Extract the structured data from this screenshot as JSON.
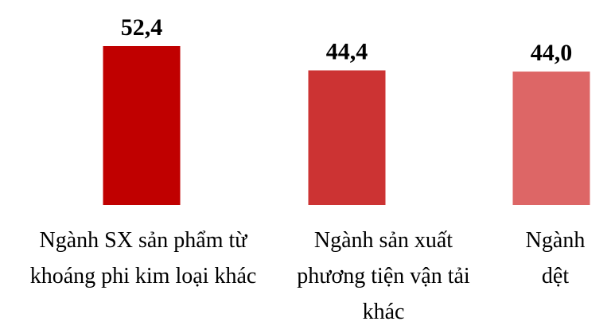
{
  "chart_data": {
    "type": "bar",
    "categories": [
      "Ngành SX sản phẩm từ khoáng phi kim loại khác",
      "Ngành sản xuất phương tiện vận tải khác",
      "Ngành dệt"
    ],
    "values": [
      52.4,
      44.4,
      44.0
    ],
    "value_labels": [
      "52,4",
      "44,4",
      "44,0"
    ],
    "colors": [
      "#c00000",
      "#cc3333",
      "#dd6666"
    ]
  }
}
